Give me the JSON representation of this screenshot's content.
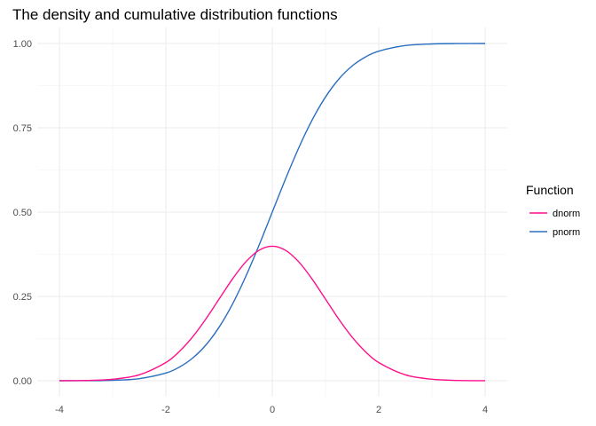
{
  "chart_data": {
    "type": "line",
    "title": "The density and cumulative distribution functions",
    "xlabel": "",
    "ylabel": "",
    "xlim": [
      -4,
      4
    ],
    "ylim": [
      0,
      1
    ],
    "x_ticks": [
      -4,
      -2,
      0,
      2,
      4
    ],
    "x_tick_labels": [
      "-4",
      "-2",
      "0",
      "2",
      "4"
    ],
    "y_ticks": [
      0,
      0.25,
      0.5,
      0.75,
      1
    ],
    "y_tick_labels": [
      "0.00",
      "0.25",
      "0.50",
      "0.75",
      "1.00"
    ],
    "grid": true,
    "legend": {
      "title": "Function",
      "position": "right"
    },
    "x": [
      -4,
      -3.5,
      -3,
      -2.5,
      -2,
      -1.75,
      -1.5,
      -1.25,
      -1,
      -0.75,
      -0.5,
      -0.25,
      0,
      0.25,
      0.5,
      0.75,
      1,
      1.25,
      1.5,
      1.75,
      2,
      2.5,
      3,
      3.5,
      4
    ],
    "series": [
      {
        "name": "dnorm",
        "color": "#ff0f8a",
        "values": [
          0.0001,
          0.0009,
          0.0044,
          0.0175,
          0.054,
          0.0863,
          0.1295,
          0.1826,
          0.242,
          0.3011,
          0.3521,
          0.3867,
          0.3989,
          0.3867,
          0.3521,
          0.3011,
          0.242,
          0.1826,
          0.1295,
          0.0863,
          0.054,
          0.0175,
          0.0044,
          0.0009,
          0.0001
        ]
      },
      {
        "name": "pnorm",
        "color": "#2a6ebf",
        "values": [
          0.0,
          0.0002,
          0.0013,
          0.0062,
          0.0228,
          0.0401,
          0.0668,
          0.1056,
          0.1587,
          0.2266,
          0.3085,
          0.4013,
          0.5,
          0.5987,
          0.6915,
          0.7734,
          0.8413,
          0.8944,
          0.9332,
          0.9599,
          0.9772,
          0.9938,
          0.9987,
          0.9998,
          1.0
        ]
      }
    ]
  }
}
